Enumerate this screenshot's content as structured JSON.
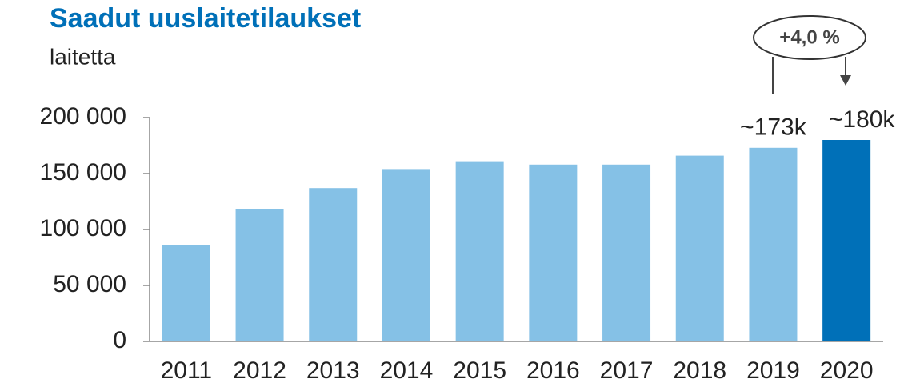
{
  "chart_data": {
    "type": "bar",
    "title": "Saadut uuslaitetilaukset",
    "subtitle": "laitetta",
    "annotation": "+4,0 %",
    "categories": [
      "2011",
      "2012",
      "2013",
      "2014",
      "2015",
      "2016",
      "2017",
      "2018",
      "2019",
      "2020"
    ],
    "values": [
      86000,
      118000,
      137000,
      154000,
      161000,
      158000,
      158000,
      166000,
      173000,
      180000
    ],
    "value_labels": [
      null,
      null,
      null,
      null,
      null,
      null,
      null,
      null,
      "~173k",
      "~180k"
    ],
    "colors": [
      "#85c1e6",
      "#85c1e6",
      "#85c1e6",
      "#85c1e6",
      "#85c1e6",
      "#85c1e6",
      "#85c1e6",
      "#85c1e6",
      "#85c1e6",
      "#0070b8"
    ],
    "ylim": [
      0,
      200000
    ],
    "yticks": [
      {
        "value": 0,
        "label": "0"
      },
      {
        "value": 50000,
        "label": "50 000"
      },
      {
        "value": 100000,
        "label": "100 000"
      },
      {
        "value": 150000,
        "label": "150 000"
      },
      {
        "value": 200000,
        "label": "200 000"
      }
    ],
    "grid": false
  }
}
